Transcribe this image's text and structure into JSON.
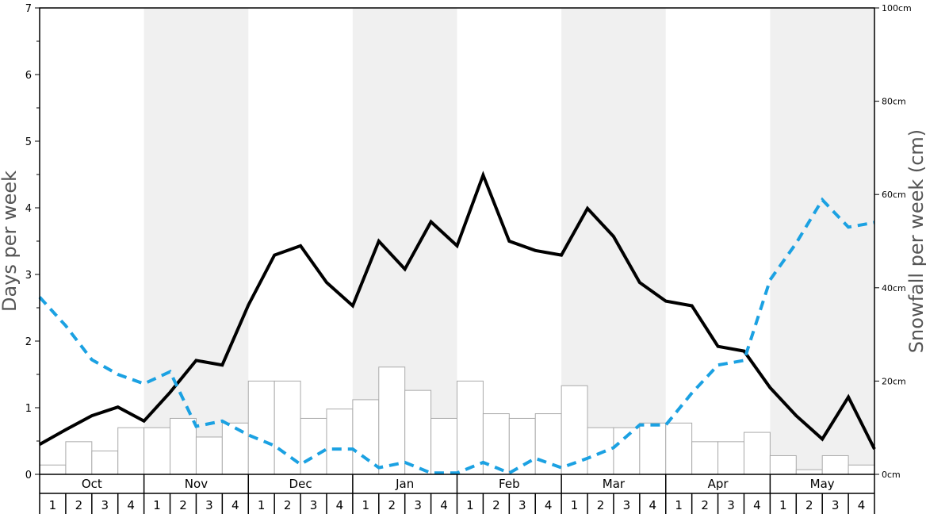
{
  "chart_data": {
    "type": "bar+line",
    "months": [
      "Oct",
      "Nov",
      "Dec",
      "Jan",
      "Feb",
      "Mar",
      "Apr",
      "May"
    ],
    "weeks": [
      "1",
      "2",
      "3",
      "4"
    ],
    "left_axis": {
      "label": "Days per week",
      "ylim": [
        0,
        7
      ],
      "ticks": [
        "0",
        "1",
        "2",
        "3",
        "4",
        "5",
        "6",
        "7"
      ]
    },
    "right_axis": {
      "label": "Snowfall per week (cm)",
      "ylim": [
        0,
        100
      ],
      "ticks": [
        "0cm",
        "20cm",
        "40cm",
        "60cm",
        "80cm",
        "100cm"
      ]
    },
    "shaded_months": [
      "Nov",
      "Jan",
      "Mar",
      "May"
    ],
    "series": [
      {
        "style": "bar",
        "axis": "right",
        "values": [
          2,
          7,
          5,
          10,
          10,
          12,
          8,
          11,
          20,
          20,
          12,
          14,
          16,
          23,
          18,
          12,
          20,
          13,
          12,
          13,
          19,
          10,
          10,
          11,
          11,
          7,
          7,
          9,
          4,
          1,
          4,
          2
        ]
      },
      {
        "style": "line",
        "axis": "left",
        "color": "#000000",
        "values": [
          0.45,
          0.67,
          0.88,
          1.01,
          0.8,
          1.23,
          1.71,
          1.64,
          2.54,
          3.29,
          3.43,
          2.88,
          2.53,
          3.5,
          3.08,
          3.79,
          3.43,
          4.49,
          3.5,
          3.36,
          3.29,
          3.99,
          3.57,
          2.88,
          2.6,
          2.53,
          1.92,
          1.85,
          1.3,
          0.88,
          0.53,
          1.16,
          0.38
        ]
      },
      {
        "style": "line-dashed",
        "axis": "left",
        "color": "#1ba1e2",
        "values": [
          2.66,
          2.23,
          1.72,
          1.5,
          1.36,
          1.54,
          0.72,
          0.8,
          0.59,
          0.43,
          0.15,
          0.38,
          0.38,
          0.1,
          0.18,
          0.02,
          0.02,
          0.18,
          0.02,
          0.24,
          0.1,
          0.24,
          0.4,
          0.74,
          0.74,
          1.22,
          1.64,
          1.71,
          2.92,
          3.47,
          4.12,
          3.71,
          3.78
        ]
      }
    ]
  }
}
